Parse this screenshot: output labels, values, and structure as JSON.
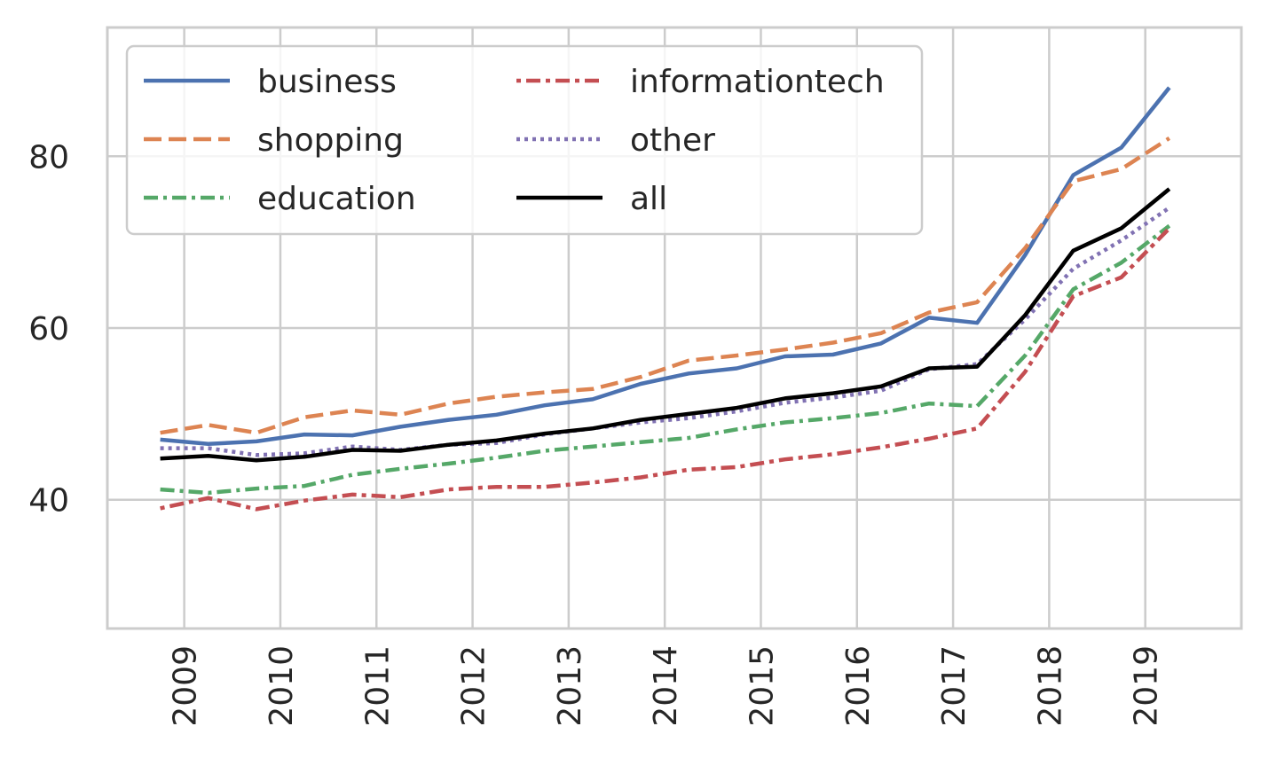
{
  "chart_data": {
    "type": "line",
    "title": "",
    "xlabel": "",
    "ylabel": "",
    "xlim": [
      2008.2,
      2020.0
    ],
    "ylim": [
      25,
      95
    ],
    "grid": true,
    "legend": {
      "placement": "top-left",
      "columns": 2
    },
    "x_ticks": [
      2009,
      2010,
      2011,
      2012,
      2013,
      2014,
      2015,
      2016,
      2017,
      2018,
      2019
    ],
    "x_tick_labels": [
      "2009",
      "2010",
      "2011",
      "2012",
      "2013",
      "2014",
      "2015",
      "2016",
      "2017",
      "2018",
      "2019"
    ],
    "y_ticks": [
      40,
      60,
      80
    ],
    "y_tick_labels": [
      "40",
      "60",
      "80"
    ],
    "x": [
      2008.75,
      2009.25,
      2009.75,
      2010.25,
      2010.75,
      2011.25,
      2011.75,
      2012.25,
      2012.75,
      2013.25,
      2013.75,
      2014.25,
      2014.75,
      2015.25,
      2015.75,
      2016.25,
      2016.75,
      2017.25,
      2017.75,
      2018.25,
      2018.75,
      2019.25
    ],
    "series": [
      {
        "name": "business",
        "color": "#4c72b0",
        "dash": "solid",
        "values": [
          47.0,
          46.5,
          46.8,
          47.6,
          47.5,
          48.5,
          49.3,
          49.9,
          51.0,
          51.7,
          53.5,
          54.7,
          55.3,
          56.7,
          56.9,
          58.2,
          61.2,
          60.6,
          68.5,
          77.8,
          81.0,
          88.0
        ]
      },
      {
        "name": "shopping",
        "color": "#dd8452",
        "dash": "dashed",
        "values": [
          47.8,
          48.7,
          47.8,
          49.6,
          50.4,
          49.9,
          51.2,
          52.0,
          52.5,
          52.9,
          54.3,
          56.2,
          56.8,
          57.5,
          58.3,
          59.4,
          61.8,
          63.0,
          69.3,
          77.1,
          78.5,
          82.1
        ]
      },
      {
        "name": "education",
        "color": "#55a868",
        "dash": "dashdot",
        "values": [
          41.2,
          40.8,
          41.3,
          41.6,
          42.9,
          43.6,
          44.2,
          44.9,
          45.7,
          46.2,
          46.7,
          47.2,
          48.2,
          49.0,
          49.5,
          50.1,
          51.2,
          50.9,
          56.8,
          64.5,
          67.6,
          71.9
        ]
      },
      {
        "name": "informationtech",
        "color": "#c44e52",
        "dash": "dotdash",
        "values": [
          39.0,
          40.2,
          38.9,
          39.9,
          40.6,
          40.3,
          41.2,
          41.5,
          41.5,
          42.0,
          42.6,
          43.5,
          43.8,
          44.7,
          45.3,
          46.1,
          47.1,
          48.3,
          54.9,
          63.7,
          65.9,
          71.6
        ]
      },
      {
        "name": "other",
        "color": "#8172b3",
        "dash": "dotted",
        "values": [
          46.0,
          46.0,
          45.2,
          45.4,
          46.2,
          45.8,
          46.4,
          46.6,
          47.6,
          48.3,
          49.0,
          49.5,
          50.3,
          51.3,
          51.9,
          52.7,
          55.2,
          55.8,
          61.0,
          66.9,
          70.2,
          74.0
        ]
      },
      {
        "name": "all",
        "color": "#000000",
        "dash": "solid",
        "values": [
          44.8,
          45.1,
          44.6,
          45.0,
          45.8,
          45.7,
          46.4,
          46.9,
          47.7,
          48.3,
          49.3,
          50.0,
          50.7,
          51.8,
          52.4,
          53.2,
          55.3,
          55.5,
          61.5,
          69.0,
          71.6,
          76.2
        ]
      }
    ]
  }
}
